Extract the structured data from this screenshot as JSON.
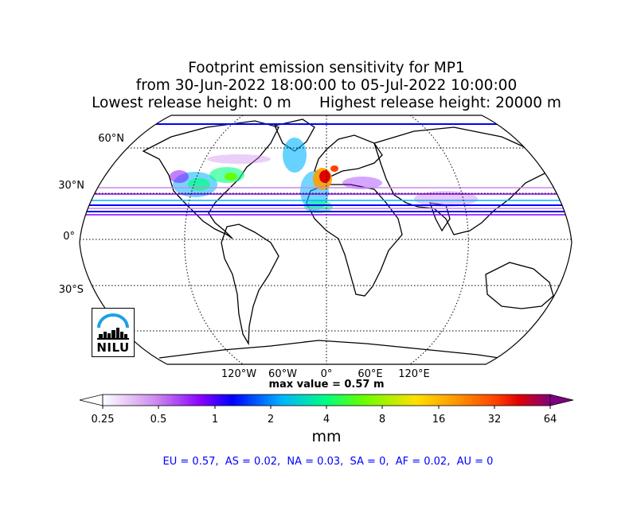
{
  "title": {
    "line1": "Footprint emission sensitivity for MP1",
    "line2": "from 30-Jun-2022 18:00:00 to 05-Jul-2022 10:00:00",
    "line3": "Lowest release height: 0 m      Highest release height: 20000 m"
  },
  "map": {
    "projection": "Robinson",
    "lat_labels": [
      "60°N",
      "30°N",
      "0°",
      "30°S"
    ],
    "lon_labels": [
      "120°W",
      "60°W",
      "0°",
      "60°E",
      "120°E"
    ],
    "graticule": "dotted"
  },
  "max_value": "max value = 0.57 m",
  "colorbar": {
    "ticks": [
      "0.25",
      "0.5",
      "1",
      "2",
      "4",
      "8",
      "16",
      "32",
      "64"
    ],
    "unit": "mm",
    "extend": "both",
    "colors": [
      "#ffffff",
      "#cc88ee",
      "#8800ff",
      "#0000ff",
      "#00b4ff",
      "#00ff80",
      "#66ff00",
      "#ffe000",
      "#ffa000",
      "#ff4000",
      "#e00000",
      "#a00060",
      "#800080"
    ]
  },
  "stats": "EU = 0.57,  AS = 0.02,  NA = 0.03,  SA = 0,  AF = 0.02,  AU = 0",
  "logo": {
    "text": "NILU"
  }
}
